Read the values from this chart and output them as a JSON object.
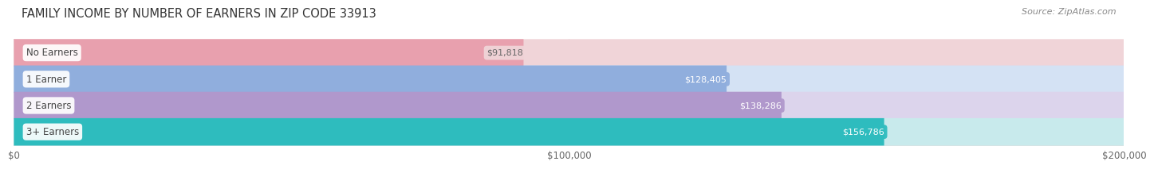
{
  "title": "FAMILY INCOME BY NUMBER OF EARNERS IN ZIP CODE 33913",
  "source_text": "Source: ZipAtlas.com",
  "categories": [
    "No Earners",
    "1 Earner",
    "2 Earners",
    "3+ Earners"
  ],
  "values": [
    91818,
    128405,
    138286,
    156786
  ],
  "labels": [
    "$91,818",
    "$128,405",
    "$138,286",
    "$156,786"
  ],
  "bar_colors": [
    "#e8a0ae",
    "#90aedd",
    "#b098cc",
    "#2ebcbe"
  ],
  "bar_bg_colors": [
    "#f0d4d8",
    "#d4e2f4",
    "#dcd4ec",
    "#c8eaec"
  ],
  "label_colors": [
    "#555555",
    "#ffffff",
    "#ffffff",
    "#ffffff"
  ],
  "label_badge_colors": [
    "#f0d4d8",
    "#90aedd",
    "#b098cc",
    "#2ebcbe"
  ],
  "label_text_colors": [
    "#666666",
    "#ffffff",
    "#ffffff",
    "#ffffff"
  ],
  "xlim": [
    0,
    200000
  ],
  "xticks": [
    0,
    100000,
    200000
  ],
  "xticklabels": [
    "$0",
    "$100,000",
    "$200,000"
  ],
  "title_fontsize": 10.5,
  "source_fontsize": 8,
  "bar_height": 0.52,
  "background_color": "#ffffff",
  "row_bg_colors": [
    "#f8f8f8",
    "#f8f8f8",
    "#f8f8f8",
    "#f8f8f8"
  ],
  "row_sep_color": "#e0e0e0"
}
